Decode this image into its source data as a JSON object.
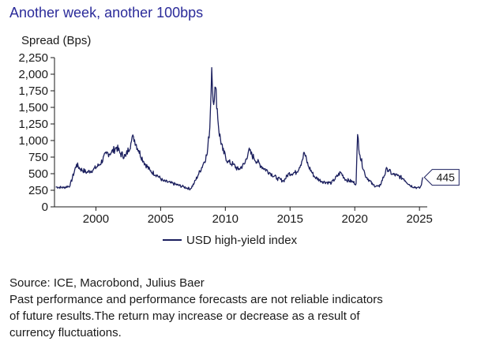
{
  "header": {
    "title": "Another week, another 100bps"
  },
  "chart_data": {
    "type": "line",
    "title": "Another week, another 100bps",
    "ylabel": "Spread (Bps)",
    "xlabel": "",
    "xlim": [
      1996.8,
      2025.6
    ],
    "ylim": [
      0,
      2250
    ],
    "y_ticks": [
      0,
      250,
      500,
      750,
      1000,
      1250,
      1500,
      1750,
      2000,
      2250
    ],
    "y_tick_labels": [
      "0",
      "250",
      "500",
      "750",
      "1,000",
      "1,250",
      "1,500",
      "1,750",
      "2,000",
      "2,250"
    ],
    "x_ticks": [
      2000,
      2005,
      2010,
      2015,
      2020,
      2025
    ],
    "x_tick_labels": [
      "2000",
      "2005",
      "2010",
      "2015",
      "2020",
      "2025"
    ],
    "legend": {
      "position": "bottom-center"
    },
    "series": [
      {
        "name": "USD high-yield index",
        "color": "#1b1f5e",
        "points": [
          [
            1996.9,
            300
          ],
          [
            1997.5,
            290
          ],
          [
            1998.0,
            320
          ],
          [
            1998.5,
            640
          ],
          [
            1998.8,
            570
          ],
          [
            1999.3,
            520
          ],
          [
            1999.8,
            560
          ],
          [
            2000.3,
            640
          ],
          [
            2000.8,
            800
          ],
          [
            2001.2,
            820
          ],
          [
            2001.6,
            900
          ],
          [
            2001.9,
            800
          ],
          [
            2002.3,
            760
          ],
          [
            2002.7,
            960
          ],
          [
            2002.9,
            1060
          ],
          [
            2003.3,
            850
          ],
          [
            2003.7,
            680
          ],
          [
            2004.2,
            540
          ],
          [
            2004.7,
            480
          ],
          [
            2005.2,
            390
          ],
          [
            2005.8,
            360
          ],
          [
            2006.3,
            330
          ],
          [
            2006.8,
            300
          ],
          [
            2007.3,
            270
          ],
          [
            2007.6,
            360
          ],
          [
            2007.9,
            480
          ],
          [
            2008.3,
            650
          ],
          [
            2008.6,
            800
          ],
          [
            2008.8,
            1200
          ],
          [
            2008.95,
            2100
          ],
          [
            2009.05,
            1600
          ],
          [
            2009.25,
            1800
          ],
          [
            2009.5,
            1150
          ],
          [
            2009.8,
            850
          ],
          [
            2010.2,
            680
          ],
          [
            2010.6,
            640
          ],
          [
            2011.0,
            560
          ],
          [
            2011.5,
            650
          ],
          [
            2011.8,
            850
          ],
          [
            2012.2,
            740
          ],
          [
            2012.8,
            610
          ],
          [
            2013.4,
            520
          ],
          [
            2014.0,
            430
          ],
          [
            2014.5,
            390
          ],
          [
            2014.9,
            500
          ],
          [
            2015.5,
            520
          ],
          [
            2015.9,
            680
          ],
          [
            2016.1,
            820
          ],
          [
            2016.4,
            620
          ],
          [
            2016.9,
            450
          ],
          [
            2017.5,
            380
          ],
          [
            2018.2,
            360
          ],
          [
            2018.9,
            520
          ],
          [
            2019.3,
            410
          ],
          [
            2019.8,
            380
          ],
          [
            2020.1,
            350
          ],
          [
            2020.22,
            1090
          ],
          [
            2020.4,
            780
          ],
          [
            2020.8,
            480
          ],
          [
            2021.4,
            330
          ],
          [
            2021.9,
            300
          ],
          [
            2022.5,
            580
          ],
          [
            2022.9,
            490
          ],
          [
            2023.3,
            470
          ],
          [
            2023.8,
            420
          ],
          [
            2024.3,
            320
          ],
          [
            2024.8,
            290
          ],
          [
            2025.0,
            280
          ],
          [
            2025.15,
            330
          ],
          [
            2025.25,
            445
          ]
        ]
      }
    ],
    "annotations": [
      {
        "text": "445",
        "x": 2025.25,
        "y": 445
      }
    ]
  },
  "footer": {
    "source": "Source: ICE, Macrobond, Julius Baer",
    "disclaimer_1": "Past performance and performance forecasts are not reliable indicators",
    "disclaimer_2": "of future results.The return may increase or decrease as a result of",
    "disclaimer_3": "currency fluctuations."
  }
}
